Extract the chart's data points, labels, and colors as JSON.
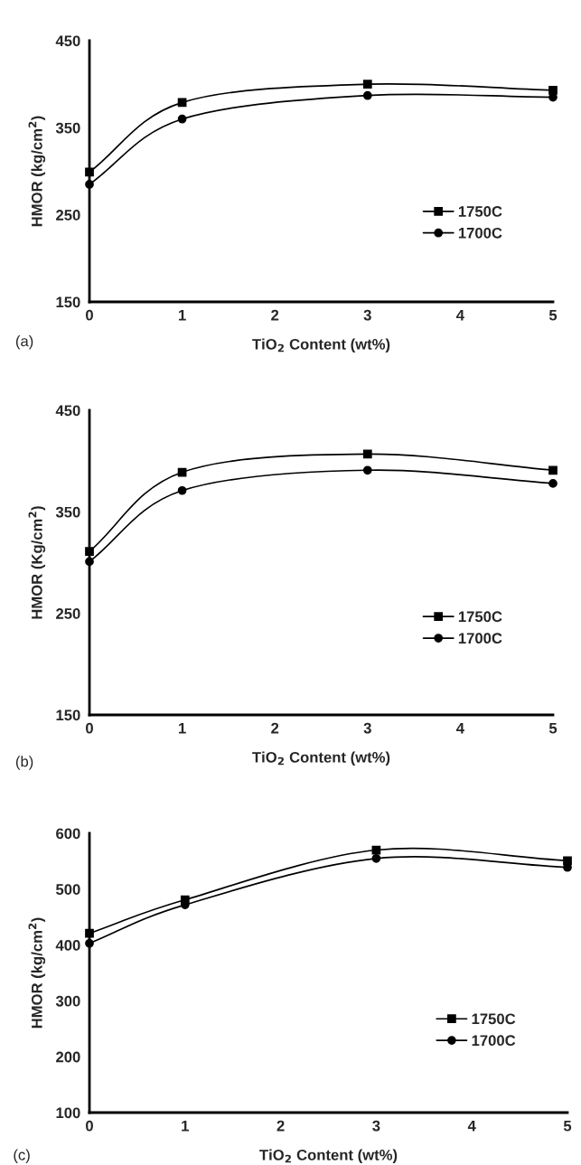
{
  "chart_data": [
    {
      "type": "line",
      "x": [
        0,
        1,
        3,
        5
      ],
      "xlabel": "TiO$_{2}$ Content (wt%)",
      "ylabel": "HMOR (kg/cm$^{2}$)",
      "xlim": [
        0,
        5
      ],
      "xticks": [
        0,
        1,
        2,
        3,
        4,
        5
      ],
      "ylim": [
        150,
        450
      ],
      "yticks": [
        150,
        250,
        350,
        450
      ],
      "legend": "bottom right",
      "grid": false,
      "line_style": "solid",
      "annotations": [
        "(a)"
      ],
      "series": [
        {
          "name": "1750C",
          "color": "#000000",
          "marker": "square",
          "values": [
            299,
            379,
            400,
            393
          ]
        },
        {
          "name": "1700C",
          "color": "#000000",
          "marker": "circle",
          "values": [
            285,
            360,
            387,
            385
          ]
        }
      ]
    },
    {
      "type": "line",
      "x": [
        0,
        1,
        3,
        5
      ],
      "xlabel": "TiO$_{2}$ Content (wt%)",
      "ylabel": "HMOR (Kg/cm$^{2}$)",
      "xlim": [
        0,
        5
      ],
      "xticks": [
        0,
        1,
        2,
        3,
        4,
        5
      ],
      "ylim": [
        150,
        450
      ],
      "yticks": [
        150,
        250,
        350,
        450
      ],
      "legend": "bottom right",
      "grid": false,
      "line_style": "solid",
      "annotations": [
        "(b)"
      ],
      "series": [
        {
          "name": "1750C",
          "color": "#000000",
          "marker": "square",
          "values": [
            311,
            389,
            407,
            391
          ]
        },
        {
          "name": "1700C",
          "color": "#000000",
          "marker": "circle",
          "values": [
            301,
            371,
            391,
            378
          ]
        }
      ]
    },
    {
      "type": "line",
      "x": [
        0,
        1,
        3,
        5
      ],
      "xlabel": "TiO$_{2}$ Content (wt%)",
      "ylabel": "HMOR (kg/cm$^{2}$)",
      "xlim": [
        0,
        5
      ],
      "xticks": [
        0,
        1,
        2,
        3,
        4,
        5
      ],
      "ylim": [
        100,
        600
      ],
      "yticks": [
        100,
        200,
        300,
        400,
        500,
        600
      ],
      "legend": "bottom right",
      "grid": false,
      "line_style": "solid",
      "annotations": [
        "(c)"
      ],
      "series": [
        {
          "name": "1750C",
          "color": "#000000",
          "marker": "square",
          "values": [
            421,
            481,
            570,
            551
          ]
        },
        {
          "name": "1700C",
          "color": "#000000",
          "marker": "circle",
          "values": [
            403,
            472,
            555,
            539
          ]
        }
      ]
    }
  ]
}
